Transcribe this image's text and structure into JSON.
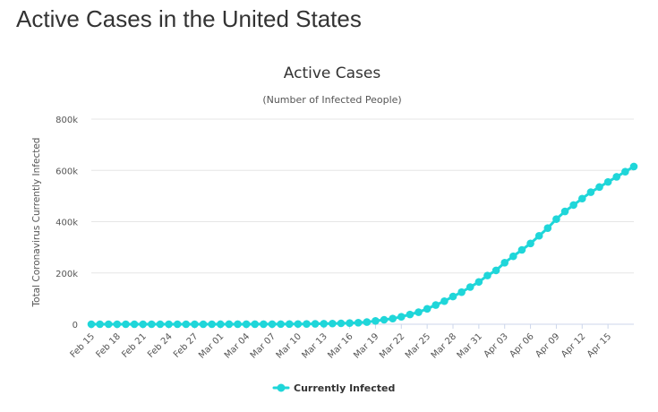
{
  "page": {
    "heading": "Active Cases in the United States"
  },
  "chart_data": {
    "type": "line",
    "title": "Active Cases",
    "subtitle": "(Number of Infected People)",
    "xlabel": "",
    "ylabel": "Total Coronavirus Currently Infected",
    "ylim": [
      0,
      800000
    ],
    "yticks": [
      0,
      200000,
      400000,
      600000,
      800000
    ],
    "ytick_labels": [
      "0",
      "200k",
      "400k",
      "600k",
      "800k"
    ],
    "grid": true,
    "legend_position": "bottom-center",
    "colors": {
      "series": "#1fd6d9",
      "grid": "#e6e6e6",
      "axis": "#ccd6eb"
    },
    "x": [
      "Feb 15",
      "Feb 16",
      "Feb 17",
      "Feb 18",
      "Feb 19",
      "Feb 20",
      "Feb 21",
      "Feb 22",
      "Feb 23",
      "Feb 24",
      "Feb 25",
      "Feb 26",
      "Feb 27",
      "Feb 28",
      "Feb 29",
      "Mar 01",
      "Mar 02",
      "Mar 03",
      "Mar 04",
      "Mar 05",
      "Mar 06",
      "Mar 07",
      "Mar 08",
      "Mar 09",
      "Mar 10",
      "Mar 11",
      "Mar 12",
      "Mar 13",
      "Mar 14",
      "Mar 15",
      "Mar 16",
      "Mar 17",
      "Mar 18",
      "Mar 19",
      "Mar 20",
      "Mar 21",
      "Mar 22",
      "Mar 23",
      "Mar 24",
      "Mar 25",
      "Mar 26",
      "Mar 27",
      "Mar 28",
      "Mar 29",
      "Mar 30",
      "Mar 31",
      "Apr 01",
      "Apr 02",
      "Apr 03",
      "Apr 04",
      "Apr 05",
      "Apr 06",
      "Apr 07",
      "Apr 08",
      "Apr 09",
      "Apr 10",
      "Apr 11",
      "Apr 12",
      "Apr 13",
      "Apr 14",
      "Apr 15",
      "Apr 16",
      "Apr 17",
      "Apr 18"
    ],
    "xtick_labels": [
      "Feb 15",
      "Feb 18",
      "Feb 21",
      "Feb 24",
      "Feb 27",
      "Mar 01",
      "Mar 04",
      "Mar 07",
      "Mar 10",
      "Mar 13",
      "Mar 16",
      "Mar 19",
      "Mar 22",
      "Mar 25",
      "Mar 28",
      "Mar 31",
      "Apr 03",
      "Apr 06",
      "Apr 09",
      "Apr 12",
      "Apr 15"
    ],
    "series": [
      {
        "name": "Currently Infected",
        "values": [
          8,
          8,
          8,
          8,
          8,
          8,
          8,
          8,
          8,
          8,
          8,
          8,
          8,
          8,
          8,
          60,
          80,
          100,
          120,
          190,
          240,
          380,
          480,
          640,
          900,
          1200,
          1600,
          2100,
          2600,
          3500,
          4500,
          6000,
          8500,
          13000,
          17500,
          22000,
          29000,
          38000,
          47000,
          60000,
          75000,
          90000,
          108000,
          125000,
          145000,
          165000,
          190000,
          210000,
          240000,
          265000,
          290000,
          315000,
          345000,
          375000,
          410000,
          440000,
          465000,
          490000,
          515000,
          535000,
          555000,
          575000,
          595000,
          615000
        ]
      }
    ]
  }
}
